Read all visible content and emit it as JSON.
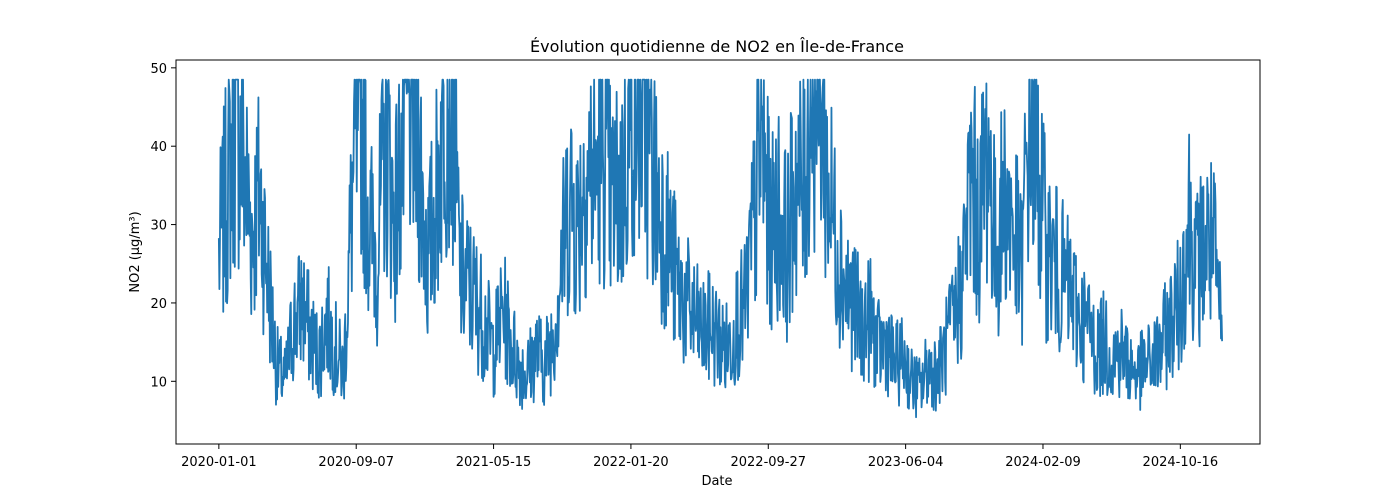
{
  "chart_data": {
    "type": "line",
    "title": "Évolution quotidienne de NO2 en Île-de-France",
    "xlabel": "Date",
    "ylabel": "NO2 (µg/m³)",
    "x_range": [
      "2019-10-15",
      "2025-03-10"
    ],
    "ylim": [
      2.0,
      51.0
    ],
    "x_ticks": [
      "2020-01-01",
      "2020-09-07",
      "2021-05-15",
      "2022-01-20",
      "2022-09-27",
      "2023-06-04",
      "2024-02-09",
      "2024-10-16"
    ],
    "y_ticks": [
      10,
      20,
      30,
      40,
      50
    ],
    "grid": false,
    "series_color": "#1f77b4",
    "series": [
      {
        "x": [
          "2020-01-01",
          "2020-01-15",
          "2020-02-01",
          "2020-02-15",
          "2020-03-01",
          "2020-03-15",
          "2020-04-01",
          "2020-04-15",
          "2020-05-01",
          "2020-05-15",
          "2020-06-01",
          "2020-06-15",
          "2020-07-01",
          "2020-07-15",
          "2020-08-01",
          "2020-08-15",
          "2020-09-01",
          "2020-09-15",
          "2020-10-01",
          "2020-10-15",
          "2020-11-01",
          "2020-11-15",
          "2020-12-01",
          "2020-12-15",
          "2021-01-01",
          "2021-01-15",
          "2021-02-01",
          "2021-02-15",
          "2021-03-01",
          "2021-03-15",
          "2021-04-01",
          "2021-04-15",
          "2021-05-01",
          "2021-05-15",
          "2021-06-01",
          "2021-06-15",
          "2021-07-01",
          "2021-07-15",
          "2021-08-01",
          "2021-08-15",
          "2021-09-01",
          "2021-09-15",
          "2021-10-01",
          "2021-10-15",
          "2021-11-01",
          "2021-11-15",
          "2021-12-01",
          "2021-12-15",
          "2022-01-01",
          "2022-01-15",
          "2022-02-01",
          "2022-02-15",
          "2022-03-01",
          "2022-03-15",
          "2022-04-01",
          "2022-04-15",
          "2022-05-01",
          "2022-05-15",
          "2022-06-01",
          "2022-06-15",
          "2022-07-01",
          "2022-07-15",
          "2022-08-01",
          "2022-08-15",
          "2022-09-01",
          "2022-09-15",
          "2022-10-01",
          "2022-10-15",
          "2022-11-01",
          "2022-11-15",
          "2022-12-01",
          "2022-12-15",
          "2023-01-01",
          "2023-01-15",
          "2023-02-01",
          "2023-02-15",
          "2023-03-01",
          "2023-03-15",
          "2023-04-01",
          "2023-04-15",
          "2023-05-01",
          "2023-05-15",
          "2023-06-01",
          "2023-06-15",
          "2023-07-01",
          "2023-07-15",
          "2023-08-01",
          "2023-08-15",
          "2023-09-01",
          "2023-09-15",
          "2023-10-01",
          "2023-10-15",
          "2023-11-01",
          "2023-11-15",
          "2023-12-01",
          "2023-12-15",
          "2024-01-01",
          "2024-01-15",
          "2024-02-01",
          "2024-02-15",
          "2024-03-01",
          "2024-03-15",
          "2024-04-01",
          "2024-04-15",
          "2024-05-01",
          "2024-05-15",
          "2024-06-01",
          "2024-06-15",
          "2024-07-01",
          "2024-07-15",
          "2024-08-01",
          "2024-08-15",
          "2024-09-01",
          "2024-09-15",
          "2024-10-01",
          "2024-10-15",
          "2024-11-01",
          "2024-11-15",
          "2024-12-01",
          "2024-12-15",
          "2024-12-31"
        ],
        "y": [
          26,
          34,
          44,
          38,
          29,
          34,
          22,
          12,
          10,
          17,
          20,
          16,
          13,
          18,
          14,
          11,
          35,
          46,
          30,
          26,
          42,
          30,
          40,
          47,
          38,
          25,
          34,
          47,
          46,
          24,
          22,
          20,
          17,
          14,
          19,
          15,
          12,
          11,
          14,
          12,
          16,
          25,
          34,
          30,
          38,
          36,
          40,
          33,
          34,
          41,
          46,
          42,
          36,
          32,
          27,
          22,
          20,
          18,
          16,
          17,
          15,
          14,
          18,
          19,
          30,
          41,
          28,
          32,
          27,
          36,
          34,
          48,
          46,
          34,
          27,
          22,
          20,
          17,
          18,
          14,
          15,
          12,
          13,
          10,
          9,
          12,
          11,
          14,
          18,
          23,
          36,
          30,
          40,
          26,
          34,
          30,
          24,
          44,
          36,
          27,
          25,
          23,
          21,
          18,
          17,
          14,
          15,
          13,
          14,
          12,
          11,
          12,
          13,
          15,
          18,
          20,
          31,
          24,
          28,
          27,
          15
        ]
      }
    ]
  }
}
